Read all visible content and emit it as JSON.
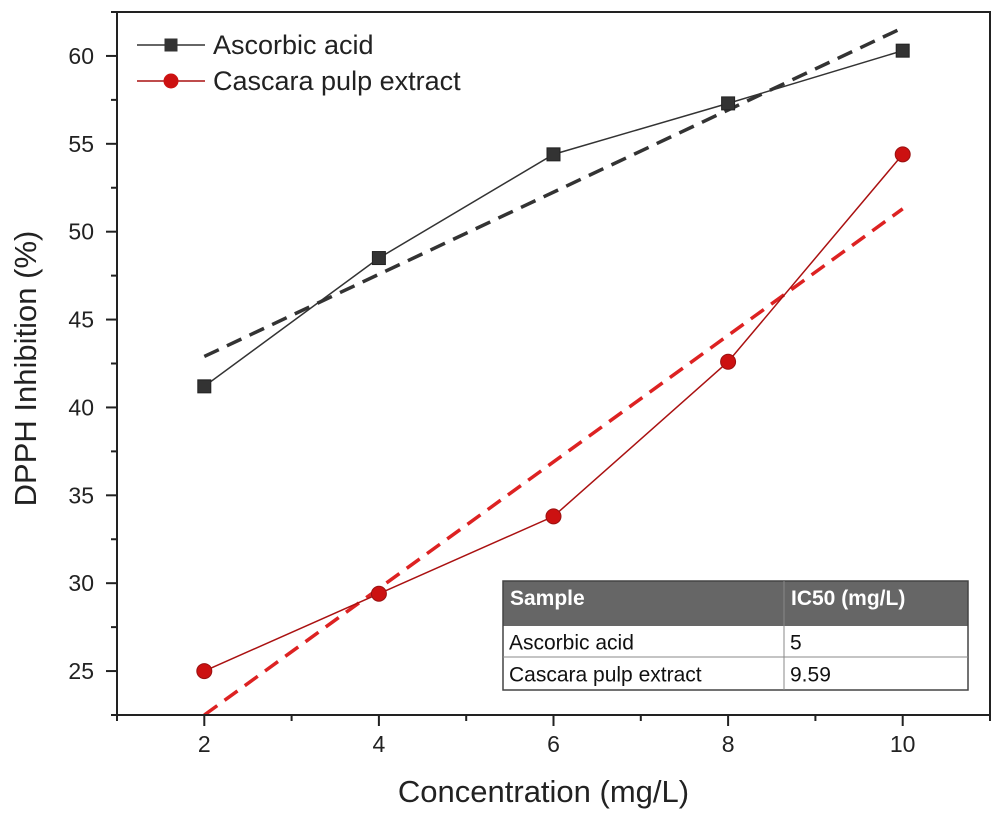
{
  "chart_data": {
    "type": "line",
    "title": "",
    "xlabel": "Concentration (mg/L)",
    "ylabel": "DPPH Inhibition (%)",
    "x": [
      2,
      4,
      6,
      8,
      10
    ],
    "xlim": [
      1,
      11
    ],
    "ylim": [
      22.5,
      62.5
    ],
    "x_ticks": [
      2,
      4,
      6,
      8,
      10
    ],
    "y_ticks": [
      25,
      30,
      35,
      40,
      45,
      50,
      55,
      60
    ],
    "grid": false,
    "legend_position": "top-left",
    "series": [
      {
        "name": "Ascorbic acid",
        "values": [
          41.2,
          48.5,
          54.4,
          57.3,
          60.3
        ],
        "marker": "square",
        "color": "#333333",
        "trendline": {
          "x": [
            2,
            10
          ],
          "y": [
            42.9,
            61.6
          ],
          "style": "dashed"
        }
      },
      {
        "name": "Cascara pulp extract",
        "values": [
          25.0,
          29.4,
          33.8,
          42.6,
          54.4
        ],
        "marker": "circle",
        "color": "#cc1111",
        "trendline": {
          "x": [
            2,
            10
          ],
          "y": [
            22.5,
            51.3
          ],
          "style": "dashed"
        }
      }
    ]
  },
  "inset_table": {
    "headers": [
      "Sample",
      "IC50 (mg/L)"
    ],
    "rows": [
      [
        "Ascorbic acid",
        "5"
      ],
      [
        "Cascara pulp extract",
        "9.59"
      ]
    ],
    "header_color": "#666666"
  }
}
